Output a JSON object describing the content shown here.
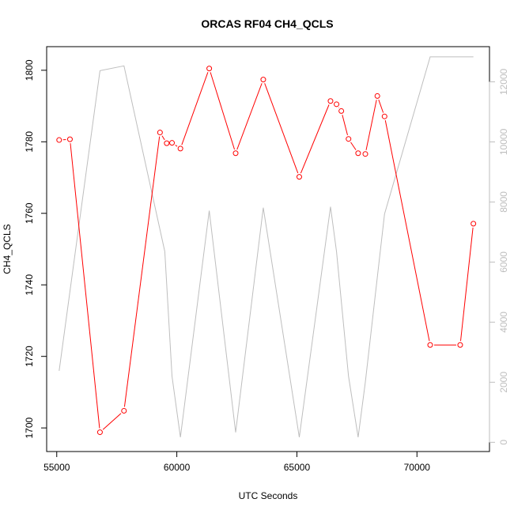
{
  "chart_data": {
    "type": "line",
    "title": "ORCAS RF04 CH4_QCLS",
    "xlabel": "UTC Seconds",
    "ylabel": "CH4_QCLS",
    "xlim": [
      54580,
      73020
    ],
    "ylim": [
      1693.4,
      1806.6
    ],
    "y2lim": [
      -307,
      13170
    ],
    "x_ticks": [
      55000,
      60000,
      65000,
      70000
    ],
    "y_ticks": [
      1700,
      1720,
      1740,
      1760,
      1780,
      1800
    ],
    "y2_ticks": [
      0,
      2000,
      4000,
      6000,
      8000,
      10000,
      12000
    ],
    "grid": false,
    "colors": {
      "primary": "#ff0000",
      "secondary": "#bebebe",
      "axes": "#000000"
    },
    "series": [
      {
        "axis": "left",
        "color": "#ff0000",
        "markers": "open-circle",
        "points": [
          [
            55100,
            1780.5
          ],
          [
            55550,
            1780.7
          ],
          [
            56800,
            1698.8
          ],
          [
            57800,
            1704.8
          ],
          [
            59300,
            1782.6
          ],
          [
            59580,
            1779.6
          ],
          [
            59800,
            1779.7
          ],
          [
            60150,
            1778.1
          ],
          [
            61350,
            1800.5
          ],
          [
            62450,
            1776.8
          ],
          [
            63600,
            1797.4
          ],
          [
            65100,
            1770.2
          ],
          [
            66400,
            1791.4
          ],
          [
            66650,
            1790.5
          ],
          [
            66850,
            1788.6
          ],
          [
            67150,
            1780.8
          ],
          [
            67550,
            1776.8
          ],
          [
            67850,
            1776.6
          ],
          [
            68350,
            1792.8
          ],
          [
            68650,
            1787.1
          ],
          [
            70550,
            1723.2
          ],
          [
            71800,
            1723.2
          ],
          [
            72350,
            1757.1
          ]
        ]
      },
      {
        "axis": "right",
        "color": "#bebebe",
        "markers": "none",
        "points": [
          [
            55100,
            2380
          ],
          [
            56800,
            12370
          ],
          [
            57800,
            12530
          ],
          [
            59500,
            6350
          ],
          [
            59800,
            2200
          ],
          [
            60150,
            170
          ],
          [
            61350,
            7710
          ],
          [
            62450,
            330
          ],
          [
            63600,
            7810
          ],
          [
            65100,
            170
          ],
          [
            66400,
            7840
          ],
          [
            66650,
            6350
          ],
          [
            67150,
            2200
          ],
          [
            67550,
            170
          ],
          [
            67850,
            2000
          ],
          [
            68650,
            7600
          ],
          [
            70550,
            12830
          ],
          [
            72350,
            12830
          ]
        ]
      }
    ]
  }
}
